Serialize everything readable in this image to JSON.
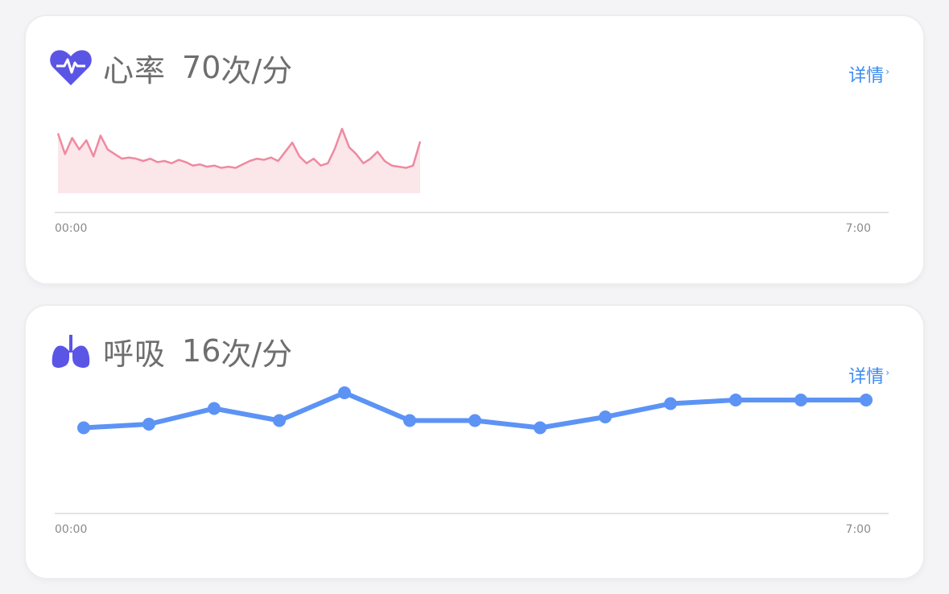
{
  "cards": [
    {
      "id": "heart-rate",
      "title": "心率",
      "value": "70",
      "unit": "次/分",
      "detail_label": "详情",
      "icon": "heart-icon",
      "icon_color": "#5b55e6",
      "line_color": "#ee8aa0",
      "fill_color": "#fbe6ea"
    },
    {
      "id": "respiration",
      "title": "呼吸",
      "value": "16",
      "unit": "次/分",
      "detail_label": "详情",
      "icon": "lungs-icon",
      "icon_color": "#5b55e6",
      "line_color": "#5c93f5"
    }
  ],
  "chart_data": [
    {
      "type": "area",
      "x_start_label": "00:00",
      "x_end_label": "7:00",
      "ylim": [
        40,
        110
      ],
      "values": [
        92,
        74,
        88,
        78,
        86,
        72,
        90,
        78,
        74,
        70,
        71,
        70,
        68,
        70,
        67,
        68,
        66,
        69,
        67,
        64,
        65,
        63,
        64,
        62,
        63,
        62,
        65,
        68,
        70,
        69,
        71,
        68,
        76,
        84,
        72,
        66,
        70,
        64,
        66,
        79,
        96,
        80,
        74,
        66,
        70,
        76,
        68,
        64,
        63,
        62,
        64,
        85
      ]
    },
    {
      "type": "line",
      "x_start_label": "00:00",
      "x_end_label": "7:00",
      "ylim": [
        10,
        22
      ],
      "values": [
        15.9,
        16.2,
        17.5,
        16.5,
        18.8,
        16.5,
        16.5,
        15.9,
        16.8,
        17.9,
        18.2,
        18.2,
        18.2
      ]
    }
  ]
}
